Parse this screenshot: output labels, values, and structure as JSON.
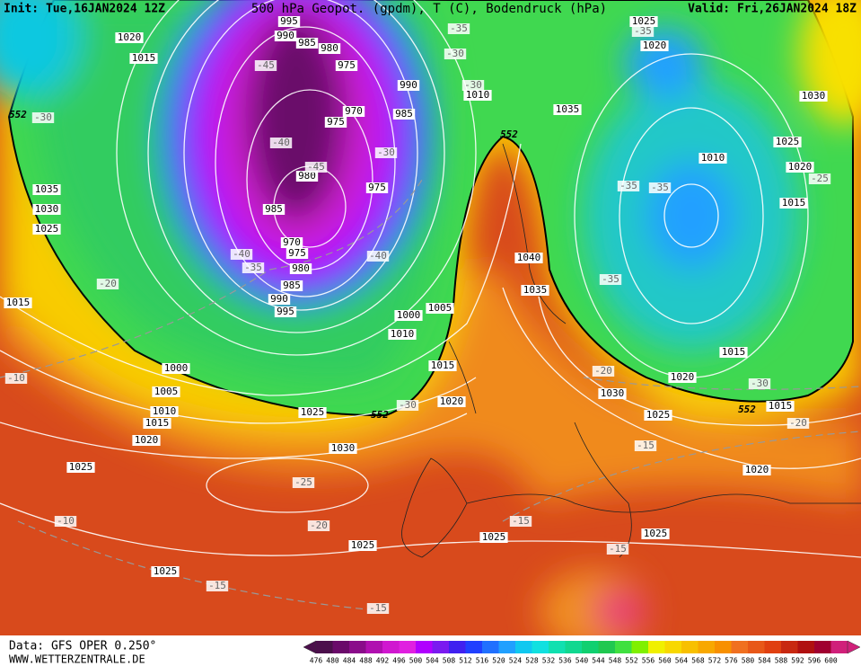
{
  "header": {
    "init": "Init: Tue,16JAN2024 12Z",
    "title": "500 hPa Geopot. (gpdm), T (C), Bodendruck (hPa)",
    "valid": "Valid: Fri,26JAN2024 18Z"
  },
  "footer": {
    "source": "Data: GFS OPER 0.250°",
    "site": "WWW.WETTERZENTRALE.DE"
  },
  "colorbar": {
    "labels": [
      476,
      480,
      484,
      488,
      492,
      496,
      500,
      504,
      508,
      512,
      516,
      520,
      524,
      528,
      532,
      536,
      540,
      544,
      548,
      552,
      556,
      560,
      564,
      568,
      572,
      576,
      580,
      584,
      588,
      592,
      596,
      600
    ],
    "colors": [
      "#4b0f4b",
      "#6a0a6a",
      "#8a0c8a",
      "#b010b0",
      "#d018d0",
      "#e020e0",
      "#b000ff",
      "#7a1af0",
      "#4020f0",
      "#2040ff",
      "#2070ff",
      "#20a0ff",
      "#10c8f0",
      "#10e0e0",
      "#10e0b0",
      "#10d890",
      "#10d070",
      "#20c850",
      "#40e040",
      "#80f000",
      "#f0f000",
      "#f8d800",
      "#f8c000",
      "#f8a800",
      "#f89000",
      "#f07020",
      "#e85818",
      "#e04010",
      "#c82810",
      "#b01010",
      "#a00030",
      "#d0207a"
    ]
  },
  "map": {
    "isobar_labels": [
      "995",
      "990",
      "985",
      "980",
      "975",
      "970",
      "975",
      "990",
      "985",
      "980",
      "975",
      "985",
      "970",
      "975",
      "980",
      "985",
      "990",
      "995",
      "1000",
      "1005",
      "1010",
      "1015",
      "1020",
      "1025",
      "1030",
      "1020",
      "1015",
      "1035",
      "1030",
      "1025",
      "1015",
      "1000",
      "1005",
      "1010",
      "1015",
      "1020",
      "1025",
      "1025",
      "1025",
      "1025",
      "1025",
      "1025",
      "1030",
      "1035",
      "1040",
      "1035",
      "1010",
      "1025",
      "1020",
      "1030",
      "1025",
      "1020",
      "1010",
      "1015",
      "1015",
      "1020",
      "1015",
      "1020"
    ],
    "temperature_labels": [
      "-35",
      "-30",
      "-45",
      "-30",
      "-40",
      "-45",
      "-30",
      "-40",
      "-35",
      "-40",
      "-20",
      "-10",
      "-30",
      "-25",
      "-20",
      "-10",
      "-15",
      "-15",
      "-15",
      "-15",
      "-15",
      "-20",
      "-30",
      "-20",
      "-35",
      "-35",
      "-35",
      "-25",
      "-35",
      "-30"
    ],
    "height_labels": [
      "552",
      "552",
      "552",
      "552"
    ]
  }
}
